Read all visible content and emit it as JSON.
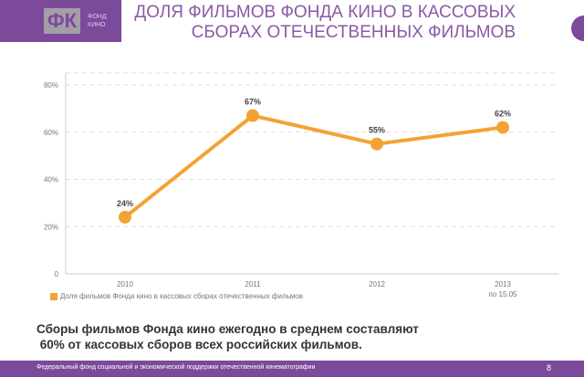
{
  "logo": {
    "mark": "ФК",
    "line1": "ФОНД",
    "line2": "КИНО"
  },
  "chart_data": {
    "type": "line",
    "title": "ДОЛЯ ФИЛЬМОВ ФОНДА КИНО В КАССОВЫХ СБОРАХ ОТЕЧЕСТВЕННЫХ ФИЛЬМОВ",
    "title_line1": "ДОЛЯ ФИЛЬМОВ ФОНДА КИНО В КАССОВЫХ",
    "title_line2": "СБОРАХ ОТЕЧЕСТВЕННЫХ ФИЛЬМОВ",
    "categories": [
      "2010",
      "2011",
      "2012",
      "2013"
    ],
    "category_sublabels": [
      "",
      "",
      "",
      "по 15.05"
    ],
    "series": [
      {
        "name": "Доля фильмов Фонда кино в кассовых сборах отечественных фильмов",
        "values": [
          24,
          67,
          55,
          62
        ],
        "labels": [
          "24%",
          "67%",
          "55%",
          "62%"
        ],
        "color": "#f3a333"
      }
    ],
    "yticks": [
      0,
      20,
      40,
      60,
      80
    ],
    "ytick_labels": [
      "0",
      "20%",
      "40%",
      "60%",
      "80%"
    ],
    "ylim": [
      0,
      85
    ],
    "grid": true,
    "legend_position": "bottom-left"
  },
  "caption": {
    "line1": "Сборы фильмов Фонда кино ежегодно в среднем составляют",
    "line2": " 60% от кассовых сборов всех российских фильмов."
  },
  "footer": {
    "text": "Федеральный фонд социальной и экономической поддержки отечественной кинематографии",
    "page": "8"
  }
}
